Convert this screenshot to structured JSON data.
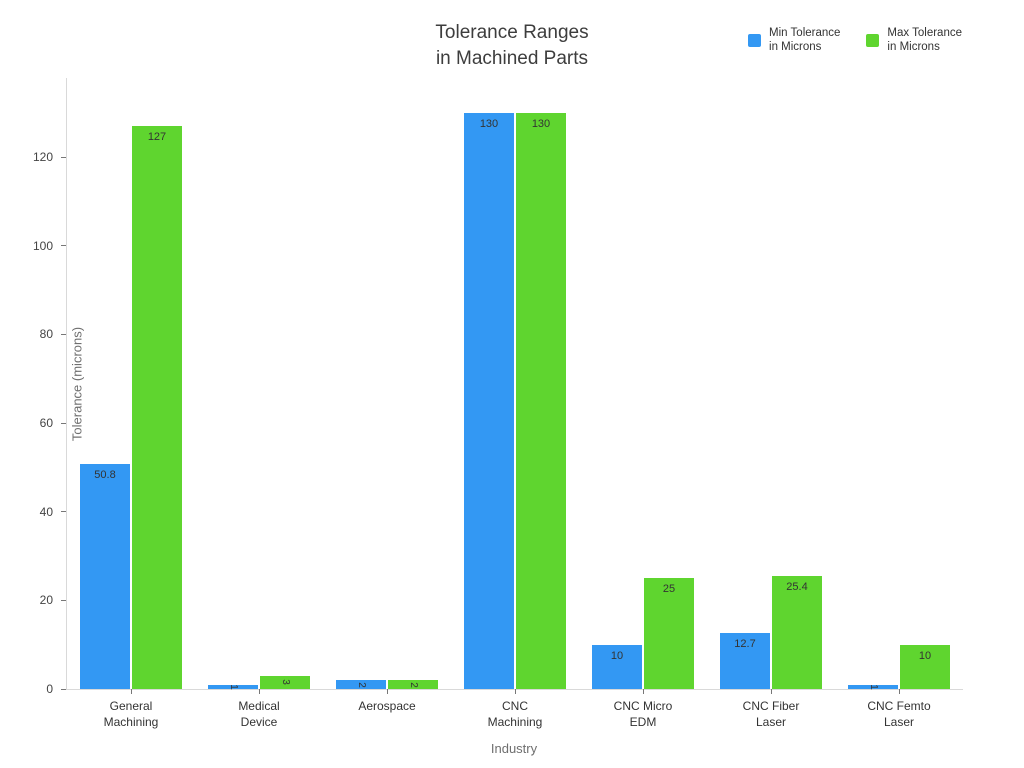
{
  "chart_data": {
    "type": "bar",
    "title": "Tolerance Ranges\nin Machined Parts",
    "xlabel": "Industry",
    "ylabel": "Tolerance (microns)",
    "categories": [
      "General\nMachining",
      "Medical\nDevice",
      "Aerospace",
      "CNC\nMachining",
      "CNC Micro\nEDM",
      "CNC Fiber\nLaser",
      "CNC Femto\nLaser"
    ],
    "series": [
      {
        "name": "Min Tolerance\nin Microns",
        "color": "#3398f3",
        "values": [
          50.8,
          1,
          2,
          130,
          10,
          12.7,
          1
        ],
        "bar_labels": [
          "50.8",
          "1",
          "2",
          "130",
          "10",
          "12.7",
          "1"
        ]
      },
      {
        "name": "Max Tolerance\nin Microns",
        "color": "#5fd52f",
        "values": [
          127,
          3,
          2,
          130,
          25,
          25.4,
          10
        ],
        "bar_labels": [
          "127",
          "3",
          "2",
          "130",
          "25",
          "25.4",
          "10"
        ]
      }
    ],
    "yticks": [
      0,
      20,
      40,
      60,
      80,
      100,
      120
    ],
    "ylim": [
      0,
      137.8
    ],
    "grid": false,
    "legend_position": "top-right",
    "bar_label_position": "inside-top"
  }
}
